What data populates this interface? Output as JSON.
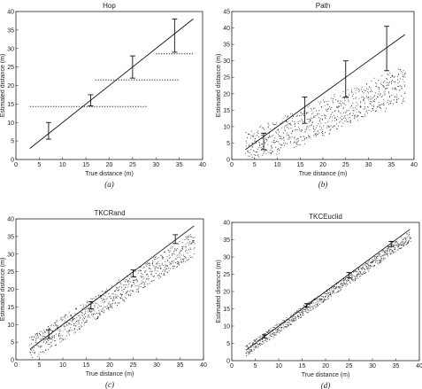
{
  "chart_data": [
    {
      "type": "scatter",
      "title": "Hop",
      "sublabel": "(a)",
      "xlabel": "True distance (m)",
      "ylabel": "Estimated distance (m)",
      "xlim": [
        0,
        40
      ],
      "ylim": [
        0,
        40
      ],
      "xticks": [
        0,
        5,
        10,
        15,
        20,
        25,
        30,
        35,
        40
      ],
      "yticks": [
        0,
        5,
        10,
        15,
        20,
        25,
        30,
        35,
        40
      ],
      "fit_line": {
        "x": [
          3,
          38
        ],
        "y": [
          3,
          38
        ]
      },
      "errorbars": [
        {
          "x": 7,
          "y": 7.5,
          "lo": 5.5,
          "hi": 10
        },
        {
          "x": 16,
          "y": 16,
          "lo": 14.5,
          "hi": 17.5
        },
        {
          "x": 25,
          "y": 24.5,
          "lo": 22,
          "hi": 28
        },
        {
          "x": 34,
          "y": 33.5,
          "lo": 29,
          "hi": 38
        }
      ],
      "hop_levels": [
        {
          "y": 14.3,
          "x_from": 3,
          "x_to": 28
        },
        {
          "y": 21.5,
          "x_from": 17,
          "x_to": 35
        },
        {
          "y": 28.6,
          "x_from": 30,
          "x_to": 38
        }
      ]
    },
    {
      "type": "scatter",
      "title": "Path",
      "sublabel": "(b)",
      "xlabel": "True distance (m)",
      "ylabel": "Estimated distance (m)",
      "xlim": [
        0,
        40
      ],
      "ylim": [
        0,
        45
      ],
      "xticks": [
        0,
        5,
        10,
        15,
        20,
        25,
        30,
        35,
        40
      ],
      "yticks": [
        0,
        5,
        10,
        15,
        20,
        25,
        30,
        35,
        40,
        45
      ],
      "fit_line": {
        "x": [
          3,
          38
        ],
        "y": [
          3,
          38
        ]
      },
      "errorbars": [
        {
          "x": 7,
          "y": 5.5,
          "lo": 3,
          "hi": 8
        },
        {
          "x": 16,
          "y": 15,
          "lo": 11,
          "hi": 19
        },
        {
          "x": 25,
          "y": 24,
          "lo": 19,
          "hi": 30
        },
        {
          "x": 34,
          "y": 34,
          "lo": 27,
          "hi": 40.5
        }
      ],
      "scatter_trend": {
        "x_from": 3,
        "x_to": 38,
        "y_at_x_from": 2,
        "y_at_x_to": 22,
        "spread": 5
      }
    },
    {
      "type": "scatter",
      "title": "TKCRand",
      "sublabel": "(c)",
      "xlabel": "True distance (m)",
      "ylabel": "Estimated distance (m)",
      "xlim": [
        0,
        40
      ],
      "ylim": [
        0,
        40
      ],
      "xticks": [
        0,
        5,
        10,
        15,
        20,
        25,
        30,
        35,
        40
      ],
      "yticks": [
        0,
        5,
        10,
        15,
        20,
        25,
        30,
        35,
        40
      ],
      "fit_line": {
        "x": [
          3,
          38
        ],
        "y": [
          3,
          38
        ]
      },
      "errorbars": [
        {
          "x": 7,
          "y": 7,
          "lo": 6,
          "hi": 8.5
        },
        {
          "x": 16,
          "y": 15.5,
          "lo": 14.5,
          "hi": 16.5
        },
        {
          "x": 25,
          "y": 24.5,
          "lo": 23.5,
          "hi": 25.5
        },
        {
          "x": 34,
          "y": 34,
          "lo": 33,
          "hi": 35.5
        }
      ],
      "scatter_trend": {
        "x_from": 3,
        "x_to": 38,
        "y_at_x_from": 3,
        "y_at_x_to": 33,
        "spread": 3.5
      }
    },
    {
      "type": "scatter",
      "title": "TKCEuclid",
      "sublabel": "(d)",
      "xlabel": "True distance (m)",
      "ylabel": "Estimated distance (m)",
      "xlim": [
        0,
        40
      ],
      "ylim": [
        0,
        40
      ],
      "xticks": [
        0,
        5,
        10,
        15,
        20,
        25,
        30,
        35,
        40
      ],
      "yticks": [
        0,
        5,
        10,
        15,
        20,
        25,
        30,
        35,
        40
      ],
      "fit_line": {
        "x": [
          3,
          38
        ],
        "y": [
          3,
          38
        ]
      },
      "errorbars": [
        {
          "x": 7,
          "y": 7,
          "lo": 6.5,
          "hi": 7.5
        },
        {
          "x": 16,
          "y": 16,
          "lo": 15.5,
          "hi": 16.5
        },
        {
          "x": 25,
          "y": 24.5,
          "lo": 24,
          "hi": 25.5
        },
        {
          "x": 34,
          "y": 33.5,
          "lo": 33,
          "hi": 34.5
        }
      ],
      "scatter_trend": {
        "x_from": 3,
        "x_to": 38,
        "y_at_x_from": 3,
        "y_at_x_to": 36,
        "spread": 1.5
      }
    }
  ]
}
